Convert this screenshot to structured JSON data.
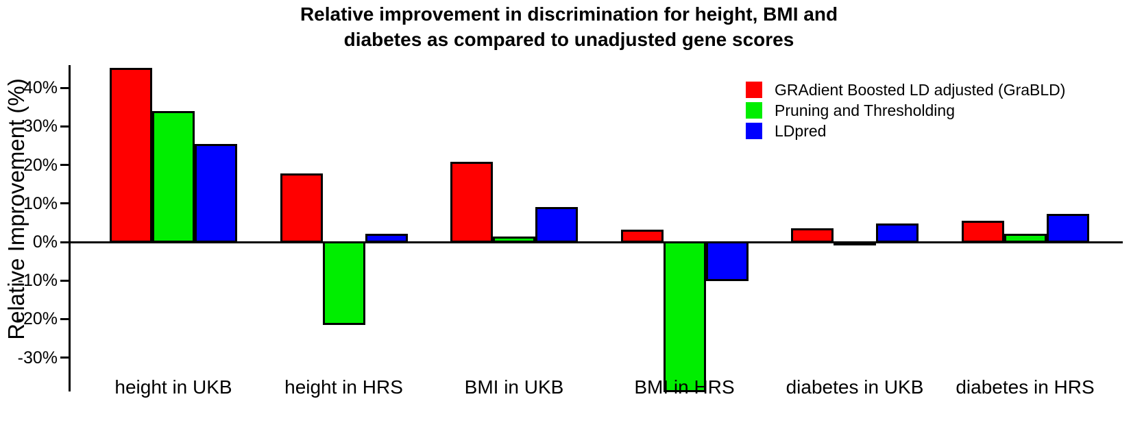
{
  "page": {
    "background": "#FFFFFF"
  },
  "chart_data": {
    "type": "bar",
    "title": "Relative improvement in discrimination for height, BMI and diabetes as compared to unadjusted gene scores",
    "title_lines": [
      "Relative improvement in discrimination for height, BMI and",
      "diabetes as compared to unadjusted gene scores"
    ],
    "xlabel": "",
    "ylabel": "Relative Improvement (%)",
    "categories": [
      "height in UKB",
      "height in HRS",
      "BMI in UKB",
      "BMI in HRS",
      "diabetes in UKB",
      "diabetes in HRS"
    ],
    "series": [
      {
        "name": "GRAdient Boosted LD adjusted (GraBLD)",
        "color": "#FF0000",
        "values": [
          45.0,
          17.6,
          20.5,
          3.0,
          3.3,
          5.3
        ]
      },
      {
        "name": "Pruning and Thresholding",
        "color": "#00EE00",
        "values": [
          33.8,
          -21.2,
          1.2,
          -38.7,
          -0.6,
          1.8
        ]
      },
      {
        "name": "LDpred",
        "color": "#0000FF",
        "values": [
          25.2,
          1.8,
          8.8,
          -9.9,
          4.5,
          7.1
        ]
      }
    ],
    "y_ticks": [
      {
        "value": 40,
        "label": "40%"
      },
      {
        "value": 30,
        "label": "30%"
      },
      {
        "value": 20,
        "label": "20%"
      },
      {
        "value": 10,
        "label": "10%"
      },
      {
        "value": 0,
        "label": "0%"
      },
      {
        "value": -10,
        "label": "-10%"
      },
      {
        "value": -20,
        "label": "-20%"
      },
      {
        "value": -30,
        "label": "-30%"
      }
    ],
    "ylim": [
      -39,
      46
    ],
    "grid": false,
    "legend_position": "top-right",
    "bar_border_color": "#000000",
    "axis_color": "#000000"
  }
}
